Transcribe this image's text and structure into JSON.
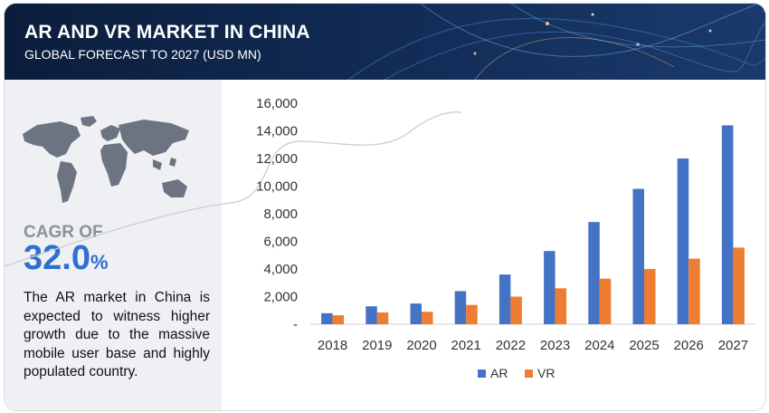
{
  "header": {
    "title": "AR AND VR MARKET IN CHINA",
    "subtitle": "GLOBAL FORECAST TO 2027 (USD MN)"
  },
  "sidebar": {
    "map_icon": "world-map-icon",
    "cagr_label": "CAGR OF",
    "cagr_value": "32.0",
    "cagr_unit": "%",
    "description": "The AR market in China is expected to witness higher growth due to the massive mobile user base and highly populated country."
  },
  "colors": {
    "header_bg": "#0e2346",
    "accent": "#2f6fd0",
    "ar": "#4472c4",
    "vr": "#ed7d31",
    "sidebar_bg": "#eef0f3"
  },
  "chart_data": {
    "type": "bar",
    "categories": [
      "2018",
      "2019",
      "2020",
      "2021",
      "2022",
      "2023",
      "2024",
      "2025",
      "2026",
      "2027"
    ],
    "series": [
      {
        "name": "AR",
        "values": [
          800,
          1300,
          1500,
          2400,
          3600,
          5300,
          7400,
          9800,
          12000,
          14400
        ]
      },
      {
        "name": "VR",
        "values": [
          650,
          850,
          900,
          1400,
          2000,
          2600,
          3300,
          4000,
          4750,
          5550
        ]
      }
    ],
    "ylim": [
      0,
      16000
    ],
    "yticks": [
      0,
      2000,
      4000,
      6000,
      8000,
      10000,
      12000,
      14000,
      16000
    ],
    "ytick_labels": [
      "-",
      "2,000",
      "4,000",
      "6,000",
      "8,000",
      "10,000",
      "12,000",
      "14,000",
      "16,000"
    ],
    "grid": false,
    "legend_position": "bottom-center",
    "xlabel": "",
    "ylabel": ""
  }
}
